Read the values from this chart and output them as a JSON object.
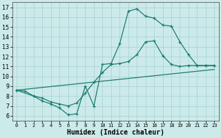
{
  "xlabel": "Humidex (Indice chaleur)",
  "xlim": [
    -0.5,
    23.5
  ],
  "ylim": [
    5.5,
    17.5
  ],
  "xticks": [
    0,
    1,
    2,
    3,
    4,
    5,
    6,
    7,
    8,
    9,
    10,
    11,
    12,
    13,
    14,
    15,
    16,
    17,
    18,
    19,
    20,
    21,
    22,
    23
  ],
  "yticks": [
    6,
    7,
    8,
    9,
    10,
    11,
    12,
    13,
    14,
    15,
    16,
    17
  ],
  "line_color": "#1a7a6e",
  "bg_color": "#cceaea",
  "grid_color": "#aad4d4",
  "curve1_x": [
    0,
    1,
    2,
    3,
    4,
    5,
    6,
    7,
    8,
    9,
    10,
    11,
    12,
    13,
    14,
    15,
    16,
    17,
    18,
    19,
    20,
    21,
    22,
    23
  ],
  "curve1_y": [
    8.6,
    8.5,
    8.0,
    7.5,
    7.2,
    6.8,
    6.1,
    6.2,
    9.0,
    7.0,
    11.2,
    11.3,
    13.3,
    16.6,
    16.85,
    16.1,
    15.9,
    15.2,
    15.1,
    13.5,
    12.2,
    11.1,
    11.1,
    11.1
  ],
  "curve2_x": [
    0,
    2,
    3,
    4,
    5,
    6,
    7,
    8,
    9,
    10,
    11,
    12,
    13,
    14,
    15,
    16,
    17,
    18,
    19,
    20,
    21,
    22,
    23
  ],
  "curve2_y": [
    8.6,
    8.0,
    7.8,
    7.4,
    7.2,
    7.0,
    7.3,
    8.3,
    9.4,
    10.4,
    11.2,
    11.3,
    11.5,
    12.2,
    13.5,
    13.6,
    12.1,
    11.2,
    11.0,
    11.1,
    11.1,
    11.1,
    11.1
  ],
  "line3_x": [
    0,
    23
  ],
  "line3_y": [
    8.6,
    10.7
  ]
}
